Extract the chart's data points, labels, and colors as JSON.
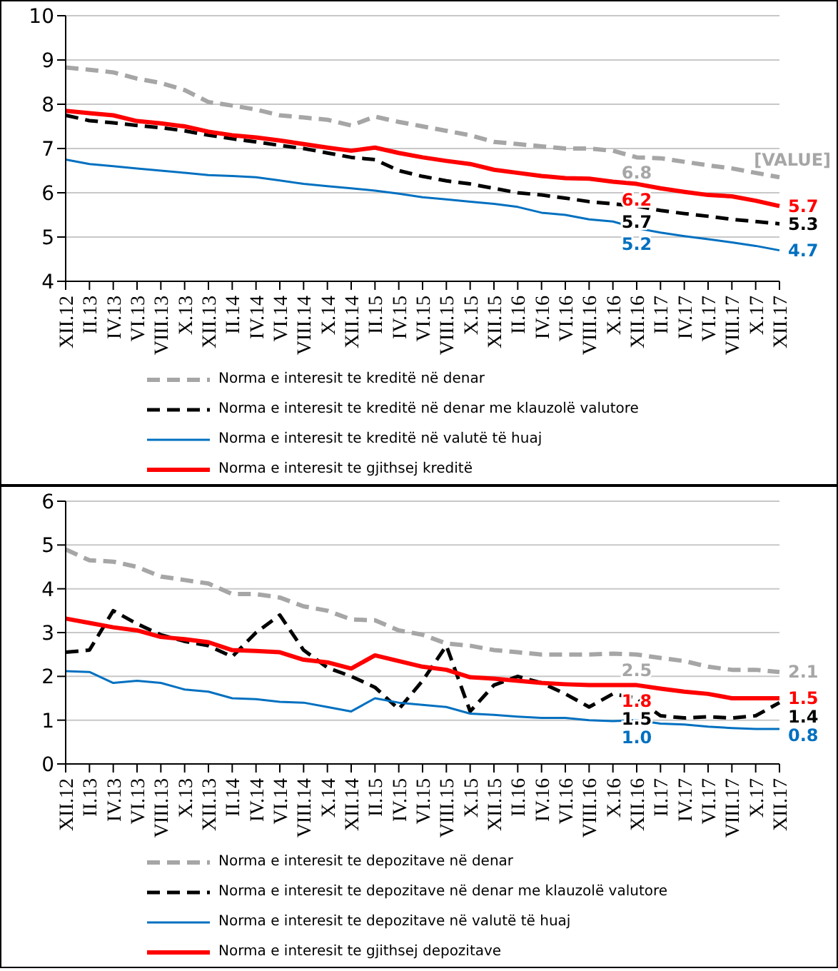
{
  "chart_data": [
    {
      "type": "line",
      "categories": [
        "XII.12",
        "II.13",
        "IV.13",
        "VI.13",
        "VIII.13",
        "X.13",
        "XII.13",
        "II.14",
        "IV.14",
        "VI.14",
        "VIII.14",
        "X.14",
        "XII.14",
        "II.15",
        "IV.15",
        "VI.15",
        "VIII.15",
        "X.15",
        "XII.15",
        "II.16",
        "IV.16",
        "VI.16",
        "VIII.16",
        "X.16",
        "XII.16",
        "II.17",
        "IV.17",
        "VI.17",
        "VIII.17",
        "X.17",
        "XII.17"
      ],
      "ylim": [
        4,
        10
      ],
      "yticks": [
        4,
        5,
        6,
        7,
        8,
        9,
        10
      ],
      "grid": "y",
      "legend": "bottom",
      "series": [
        {
          "name": "Norma e interesit te kreditë në denar",
          "color": "#a6a6a6",
          "line_style": "dashed",
          "values": [
            8.83,
            8.78,
            8.72,
            8.58,
            8.48,
            8.32,
            8.05,
            7.97,
            7.88,
            7.75,
            7.7,
            7.65,
            7.52,
            7.72,
            7.6,
            7.5,
            7.4,
            7.3,
            7.15,
            7.1,
            7.05,
            7.0,
            7.0,
            6.95,
            6.8,
            6.78,
            6.7,
            6.62,
            6.55,
            6.45,
            6.35
          ],
          "value_labels": [
            null,
            null,
            null,
            null,
            null,
            null,
            null,
            null,
            null,
            null,
            null,
            null,
            null,
            null,
            null,
            null,
            null,
            null,
            null,
            null,
            null,
            null,
            null,
            null,
            "6.8",
            null,
            null,
            null,
            null,
            null,
            "[VALUE]"
          ]
        },
        {
          "name": "Norma e interesit te kreditë në denar me klauzolë valutore",
          "color": "#000000",
          "line_style": "dashed",
          "values": [
            7.75,
            7.63,
            7.58,
            7.52,
            7.47,
            7.4,
            7.3,
            7.22,
            7.15,
            7.07,
            7.0,
            6.9,
            6.8,
            6.75,
            6.5,
            6.37,
            6.27,
            6.2,
            6.1,
            6.0,
            5.95,
            5.88,
            5.8,
            5.75,
            5.7,
            5.6,
            5.53,
            5.47,
            5.4,
            5.35,
            5.3
          ],
          "value_labels": [
            null,
            null,
            null,
            null,
            null,
            null,
            null,
            null,
            null,
            null,
            null,
            null,
            null,
            null,
            null,
            null,
            null,
            null,
            null,
            null,
            null,
            null,
            null,
            null,
            "5.7",
            null,
            null,
            null,
            null,
            null,
            "5.3"
          ]
        },
        {
          "name": "Norma e interesit te kreditë në valutë të huaj",
          "color": "#0070c0",
          "line_style": "solid",
          "values": [
            6.75,
            6.65,
            6.6,
            6.55,
            6.5,
            6.45,
            6.4,
            6.38,
            6.35,
            6.28,
            6.2,
            6.15,
            6.1,
            6.05,
            5.98,
            5.9,
            5.85,
            5.8,
            5.75,
            5.68,
            5.55,
            5.5,
            5.4,
            5.35,
            5.2,
            5.1,
            5.02,
            4.95,
            4.88,
            4.8,
            4.7
          ],
          "value_labels": [
            null,
            null,
            null,
            null,
            null,
            null,
            null,
            null,
            null,
            null,
            null,
            null,
            null,
            null,
            null,
            null,
            null,
            null,
            null,
            null,
            null,
            null,
            null,
            null,
            "5.2",
            null,
            null,
            null,
            null,
            null,
            "4.7"
          ]
        },
        {
          "name": "Norma e interesit te gjithsej kreditë",
          "color": "#ff0000",
          "line_style": "solid",
          "values": [
            7.85,
            7.8,
            7.75,
            7.62,
            7.57,
            7.5,
            7.38,
            7.3,
            7.25,
            7.18,
            7.1,
            7.02,
            6.95,
            7.02,
            6.9,
            6.8,
            6.72,
            6.65,
            6.52,
            6.45,
            6.38,
            6.33,
            6.32,
            6.25,
            6.2,
            6.1,
            6.02,
            5.95,
            5.92,
            5.82,
            5.7
          ],
          "value_labels": [
            null,
            null,
            null,
            null,
            null,
            null,
            null,
            null,
            null,
            null,
            null,
            null,
            null,
            null,
            null,
            null,
            null,
            null,
            null,
            null,
            null,
            null,
            null,
            null,
            "6.2",
            null,
            null,
            null,
            null,
            null,
            "5.7"
          ]
        }
      ]
    },
    {
      "type": "line",
      "categories": [
        "XII.12",
        "II.13",
        "IV.13",
        "VI.13",
        "VIII.13",
        "X.13",
        "XII.13",
        "II.14",
        "IV.14",
        "VI.14",
        "VIII.14",
        "X.14",
        "XII.14",
        "II.15",
        "IV.15",
        "VI.15",
        "VIII.15",
        "X.15",
        "XII.15",
        "II.16",
        "IV.16",
        "VI.16",
        "VIII.16",
        "X.16",
        "XII.16",
        "II.17",
        "IV.17",
        "VI.17",
        "VIII.17",
        "X.17",
        "XII.17"
      ],
      "ylim": [
        0,
        6
      ],
      "yticks": [
        0,
        1,
        2,
        3,
        4,
        5,
        6
      ],
      "grid": "y",
      "legend": "bottom",
      "series": [
        {
          "name": "Norma e interesit te depozitave në denar",
          "color": "#a6a6a6",
          "line_style": "dashed",
          "values": [
            4.9,
            4.65,
            4.62,
            4.5,
            4.28,
            4.2,
            4.12,
            3.88,
            3.88,
            3.8,
            3.6,
            3.5,
            3.3,
            3.28,
            3.05,
            2.95,
            2.75,
            2.7,
            2.6,
            2.55,
            2.5,
            2.5,
            2.5,
            2.52,
            2.5,
            2.42,
            2.35,
            2.22,
            2.15,
            2.15,
            2.1
          ],
          "value_labels": [
            null,
            null,
            null,
            null,
            null,
            null,
            null,
            null,
            null,
            null,
            null,
            null,
            null,
            null,
            null,
            null,
            null,
            null,
            null,
            null,
            null,
            null,
            null,
            null,
            "2.5",
            null,
            null,
            null,
            null,
            null,
            "2.1"
          ]
        },
        {
          "name": "Norma e interesit te depozitave në denar me klauzolë valutore",
          "color": "#000000",
          "line_style": "dashed",
          "values": [
            2.55,
            2.6,
            3.5,
            3.2,
            2.95,
            2.8,
            2.7,
            2.45,
            3.0,
            3.4,
            2.6,
            2.2,
            2.0,
            1.75,
            1.25,
            1.9,
            2.7,
            1.2,
            1.8,
            2.0,
            1.85,
            1.6,
            1.3,
            1.6,
            1.5,
            1.1,
            1.05,
            1.08,
            1.05,
            1.1,
            1.4
          ],
          "value_labels": [
            null,
            null,
            null,
            null,
            null,
            null,
            null,
            null,
            null,
            null,
            null,
            null,
            null,
            null,
            null,
            null,
            null,
            null,
            null,
            null,
            null,
            null,
            null,
            null,
            "1.5",
            null,
            null,
            null,
            null,
            null,
            "1.4"
          ]
        },
        {
          "name": "Norma e interesit te depozitave në valutë të huaj",
          "color": "#0070c0",
          "line_style": "solid",
          "values": [
            2.12,
            2.1,
            1.85,
            1.9,
            1.85,
            1.7,
            1.65,
            1.5,
            1.48,
            1.42,
            1.4,
            1.3,
            1.2,
            1.5,
            1.4,
            1.35,
            1.3,
            1.15,
            1.12,
            1.08,
            1.05,
            1.05,
            1.0,
            0.98,
            1.0,
            0.92,
            0.9,
            0.85,
            0.82,
            0.8,
            0.8
          ],
          "value_labels": [
            null,
            null,
            null,
            null,
            null,
            null,
            null,
            null,
            null,
            null,
            null,
            null,
            null,
            null,
            null,
            null,
            null,
            null,
            null,
            null,
            null,
            null,
            null,
            null,
            "1.0",
            null,
            null,
            null,
            null,
            null,
            "0.8"
          ]
        },
        {
          "name": "Norma e interesit te gjithsej depozitave",
          "color": "#ff0000",
          "line_style": "solid",
          "values": [
            3.32,
            3.22,
            3.12,
            3.05,
            2.9,
            2.85,
            2.78,
            2.6,
            2.58,
            2.55,
            2.38,
            2.32,
            2.18,
            2.48,
            2.35,
            2.22,
            2.15,
            1.98,
            1.95,
            1.9,
            1.85,
            1.82,
            1.8,
            1.8,
            1.8,
            1.72,
            1.65,
            1.6,
            1.5,
            1.5,
            1.5
          ],
          "value_labels": [
            null,
            null,
            null,
            null,
            null,
            null,
            null,
            null,
            null,
            null,
            null,
            null,
            null,
            null,
            null,
            null,
            null,
            null,
            null,
            null,
            null,
            null,
            null,
            null,
            "1.8",
            null,
            null,
            null,
            null,
            null,
            "1.5"
          ]
        }
      ]
    }
  ]
}
